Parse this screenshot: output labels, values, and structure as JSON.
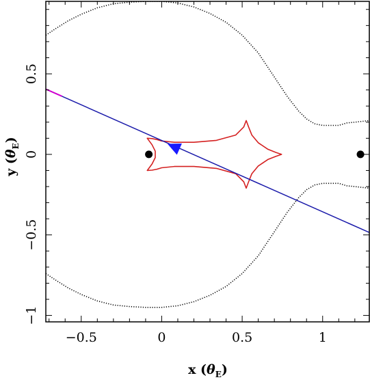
{
  "chart_data": {
    "type": "line",
    "title": "",
    "xlabel": {
      "main": "x (",
      "theta": "θ",
      "sub": "E",
      "close": ")"
    },
    "ylabel": {
      "main": "y (",
      "theta": "θ",
      "sub": "E",
      "close": ")"
    },
    "xlim": [
      -0.72,
      1.29
    ],
    "ylim": [
      -1.04,
      0.95
    ],
    "x_ticks": [
      {
        "value": -0.5,
        "label": "−0.5"
      },
      {
        "value": 0,
        "label": "0"
      },
      {
        "value": 0.5,
        "label": "0.5"
      },
      {
        "value": 1,
        "label": "1"
      }
    ],
    "y_ticks": [
      {
        "value": -1,
        "label": "−1"
      },
      {
        "value": -0.5,
        "label": "−0.5"
      },
      {
        "value": 0,
        "label": "0"
      },
      {
        "value": 0.5,
        "label": "0.5"
      }
    ],
    "x_minor_step": 0.1,
    "y_minor_step": 0.1,
    "grid": false,
    "colors": {
      "critical_curve": "#000000",
      "caustic": "#d42020",
      "trajectory": "#1a1aaa",
      "trajectory_segment": "#d000d0",
      "source": "#1a1aff",
      "lens": "#000000"
    },
    "series": [
      {
        "role": "critical_curve_upper",
        "style": "dotted",
        "x": [
          -0.72,
          -0.66,
          -0.58,
          -0.5,
          -0.4,
          -0.3,
          -0.2,
          -0.1,
          0.0,
          0.1,
          0.2,
          0.3,
          0.4,
          0.5,
          0.6,
          0.7,
          0.78,
          0.85,
          0.9,
          0.95,
          1.0,
          1.05,
          1.1,
          1.15,
          1.2,
          1.29
        ],
        "y": [
          0.74,
          0.78,
          0.83,
          0.87,
          0.91,
          0.935,
          0.945,
          0.95,
          0.95,
          0.94,
          0.915,
          0.875,
          0.82,
          0.74,
          0.63,
          0.48,
          0.36,
          0.27,
          0.22,
          0.19,
          0.18,
          0.18,
          0.18,
          0.195,
          0.2,
          0.21
        ]
      },
      {
        "role": "critical_curve_lower",
        "style": "dotted",
        "x": [
          -0.72,
          -0.66,
          -0.58,
          -0.5,
          -0.4,
          -0.3,
          -0.2,
          -0.1,
          0.0,
          0.1,
          0.2,
          0.3,
          0.4,
          0.5,
          0.6,
          0.7,
          0.78,
          0.85,
          0.9,
          0.95,
          1.0,
          1.05,
          1.1,
          1.15,
          1.2,
          1.29
        ],
        "y": [
          -0.74,
          -0.78,
          -0.83,
          -0.87,
          -0.91,
          -0.935,
          -0.945,
          -0.95,
          -0.95,
          -0.94,
          -0.915,
          -0.875,
          -0.82,
          -0.74,
          -0.63,
          -0.48,
          -0.36,
          -0.27,
          -0.22,
          -0.19,
          -0.18,
          -0.18,
          -0.18,
          -0.195,
          -0.2,
          -0.21
        ]
      },
      {
        "role": "caustic",
        "style": "solid",
        "x": [
          -0.09,
          -0.06,
          -0.03,
          0.0,
          0.08,
          0.2,
          0.34,
          0.46,
          0.51,
          0.525,
          0.54,
          0.56,
          0.6,
          0.66,
          0.71,
          0.745,
          0.71,
          0.66,
          0.6,
          0.56,
          0.54,
          0.525,
          0.51,
          0.46,
          0.34,
          0.2,
          0.08,
          0.0,
          -0.03,
          -0.06,
          -0.09,
          -0.06,
          -0.04,
          -0.04,
          -0.06,
          -0.09
        ],
        "y": [
          0.1,
          0.098,
          0.092,
          0.083,
          0.075,
          0.075,
          0.087,
          0.12,
          0.17,
          0.21,
          0.17,
          0.12,
          0.072,
          0.032,
          0.012,
          0.0,
          -0.012,
          -0.032,
          -0.072,
          -0.12,
          -0.17,
          -0.21,
          -0.17,
          -0.12,
          -0.087,
          -0.075,
          -0.075,
          -0.083,
          -0.092,
          -0.098,
          -0.1,
          -0.06,
          -0.02,
          0.02,
          0.06,
          0.1
        ]
      },
      {
        "role": "source_trajectory",
        "style": "solid",
        "x": [
          -0.72,
          1.29
        ],
        "y": [
          0.405,
          -0.485
        ]
      }
    ],
    "trajectory_highlight": {
      "x": [
        -0.72,
        -0.62
      ],
      "y": [
        0.405,
        0.361
      ]
    },
    "lenses": [
      {
        "x": -0.08,
        "y": 0.0
      },
      {
        "x": 1.235,
        "y": 0.0
      }
    ],
    "source_marker": {
      "x": 0.075,
      "y": 0.048
    }
  }
}
